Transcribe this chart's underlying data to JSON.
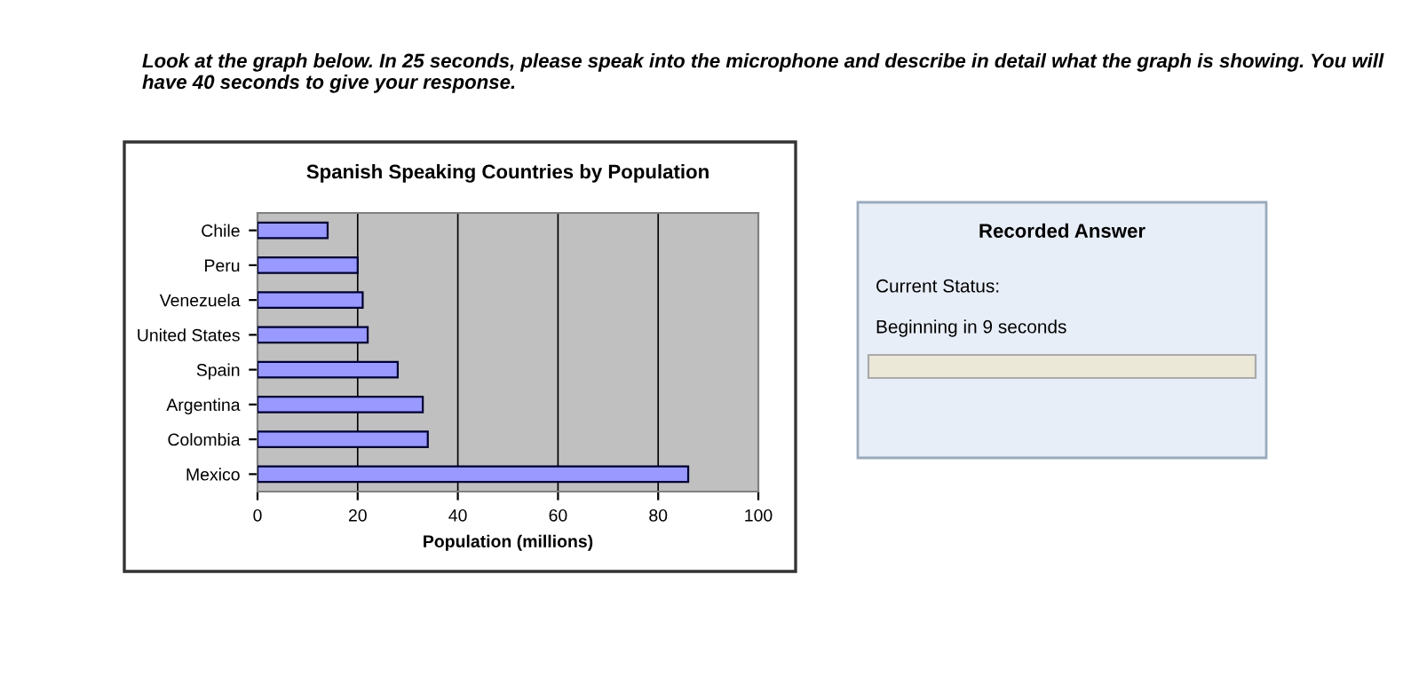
{
  "chart_data": [
    {
      "type": "bar",
      "orientation": "horizontal",
      "title": "Spanish Speaking Countries by Population",
      "xlabel": "Population (millions)",
      "categories": [
        "Chile",
        "Peru",
        "Venezuela",
        "United States",
        "Spain",
        "Argentina",
        "Colombia",
        "Mexico"
      ],
      "values": [
        14,
        20,
        21,
        22,
        28,
        33,
        34,
        86
      ],
      "color": "#9999ff",
      "xlim": [
        0,
        100
      ],
      "xticks": [
        0,
        20,
        40,
        60,
        80,
        100
      ],
      "grid": "x",
      "annotations": [
        "Look at the graph below. In 25 seconds, please speak into the microphone and describe in detail what the graph is showing. You will have 40 seconds to give your response."
      ]
    },
    {
      "type": "other",
      "title": "Recorded Answer",
      "annotations": [
        "Current Status:",
        "Beginning in 9 seconds"
      ]
    }
  ]
}
